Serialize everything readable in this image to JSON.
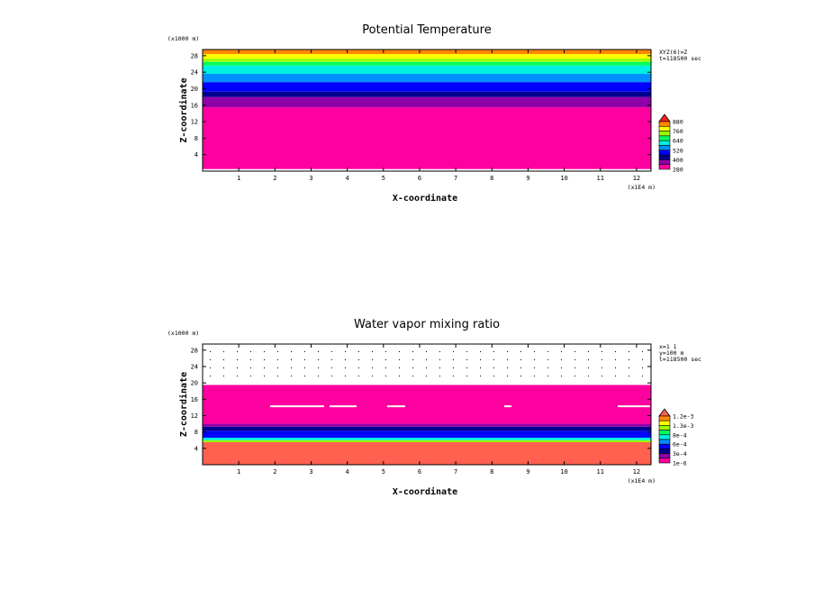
{
  "chart_data": [
    {
      "type": "heatmap",
      "title": "Potential Temperature",
      "xlabel": "X-coordinate",
      "ylabel": "Z-coordinate",
      "x_scale_label": "(x1E4 m)",
      "y_scale_label": "(x1000 m)",
      "xlim": [
        0,
        12.4
      ],
      "ylim": [
        0,
        29.5
      ],
      "x_ticks": [
        "1",
        "2",
        "3",
        "4",
        "5",
        "6",
        "7",
        "8",
        "9",
        "10",
        "11",
        "12"
      ],
      "y_ticks": [
        "4",
        "8",
        "12",
        "16",
        "20",
        "24",
        "28"
      ],
      "info": [
        "XYZ(6)=Z",
        "t=118500 sec"
      ],
      "legend": {
        "labels": [
          "880",
          "760",
          "640",
          "520",
          "400",
          "280"
        ],
        "colors": [
          "#ff2020",
          "#ff8800",
          "#ffff00",
          "#9aff00",
          "#00ff60",
          "#00f0e0",
          "#0090ff",
          "#0000ff",
          "#000090",
          "#9000a8",
          "#ff00a0"
        ]
      },
      "layers": [
        {
          "z_bottom": 0.5,
          "z_top": 15.5,
          "color": "#ff00a0"
        },
        {
          "z_bottom": 15.5,
          "z_top": 18.0,
          "color": "#9000a8"
        },
        {
          "z_bottom": 18.0,
          "z_top": 19.3,
          "color": "#000090"
        },
        {
          "z_bottom": 19.3,
          "z_top": 21.6,
          "color": "#0000ff"
        },
        {
          "z_bottom": 21.6,
          "z_top": 23.6,
          "color": "#0090ff"
        },
        {
          "z_bottom": 23.6,
          "z_top": 25.6,
          "color": "#00f0e0"
        },
        {
          "z_bottom": 25.6,
          "z_top": 26.5,
          "color": "#00ff60"
        },
        {
          "z_bottom": 26.5,
          "z_top": 27.3,
          "color": "#9aff00"
        },
        {
          "z_bottom": 27.3,
          "z_top": 28.4,
          "color": "#ffff00"
        },
        {
          "z_bottom": 28.4,
          "z_top": 29.5,
          "color": "#ff8800"
        }
      ]
    },
    {
      "type": "heatmap",
      "title": "Water vapor mixing ratio",
      "xlabel": "X-coordinate",
      "ylabel": "Z-coordinate",
      "x_scale_label": "(x1E4 m)",
      "y_scale_label": "(x1000 m)",
      "xlim": [
        0,
        12.4
      ],
      "ylim": [
        0,
        29.5
      ],
      "x_ticks": [
        "1",
        "2",
        "3",
        "4",
        "5",
        "6",
        "7",
        "8",
        "9",
        "10",
        "11",
        "12"
      ],
      "y_ticks": [
        "4",
        "8",
        "12",
        "16",
        "20",
        "24",
        "28"
      ],
      "info": [
        "x=1 1",
        "y=100 m",
        "t=118500 sec"
      ],
      "legend": {
        "labels": [
          "1.2e-3",
          "1.3e-3",
          "8e-4",
          "6e-4",
          "3e-4",
          "1e-6"
        ],
        "colors": [
          "#ff6050",
          "#ff8800",
          "#ffff00",
          "#9aff00",
          "#00ff60",
          "#00f0e0",
          "#0090ff",
          "#0000ff",
          "#000090",
          "#9000a8",
          "#ff00a0"
        ]
      },
      "layers": [
        {
          "z_bottom": 0.0,
          "z_top": 5.5,
          "color": "#ff6050"
        },
        {
          "z_bottom": 5.5,
          "z_top": 6.0,
          "color": "#9aff00"
        },
        {
          "z_bottom": 6.0,
          "z_top": 6.6,
          "color": "#00f0e0"
        },
        {
          "z_bottom": 6.6,
          "z_top": 8.3,
          "color": "#0000ff"
        },
        {
          "z_bottom": 8.3,
          "z_top": 9.3,
          "color": "#000090"
        },
        {
          "z_bottom": 9.3,
          "z_top": 10.0,
          "color": "#9000a8"
        },
        {
          "z_bottom": 10.0,
          "z_top": 19.5,
          "color": "#ff00a0"
        }
      ]
    }
  ]
}
